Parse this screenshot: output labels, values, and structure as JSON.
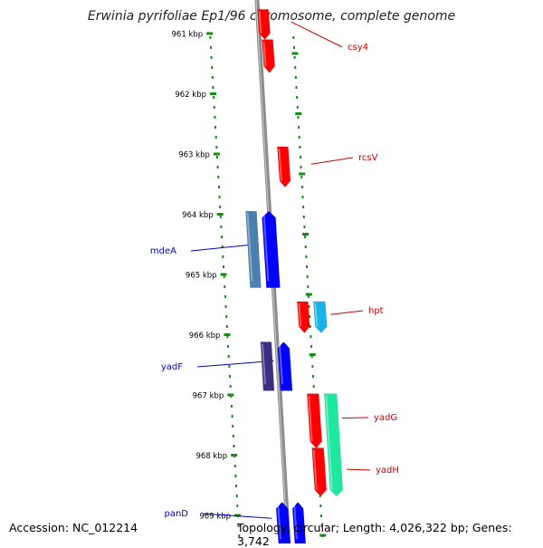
{
  "title": "Erwinia pyrifoliae Ep1/96 chromosome, complete genome",
  "accession": "Accession: NC_012214",
  "topology": "Topology: circular; Length: 4,026,322 bp; Genes: 3,742",
  "scale": [
    {
      "label": "961 kbp",
      "kbp": 961
    },
    {
      "label": "962 kbp",
      "kbp": 962
    },
    {
      "label": "963 kbp",
      "kbp": 963
    },
    {
      "label": "964 kbp",
      "kbp": 964
    },
    {
      "label": "965 kbp",
      "kbp": 965
    },
    {
      "label": "966 kbp",
      "kbp": 966
    },
    {
      "label": "967 kbp",
      "kbp": 967
    },
    {
      "label": "968 kbp",
      "kbp": 968
    },
    {
      "label": "969 kbp",
      "kbp": 969
    }
  ],
  "genes": [
    {
      "label": "csy4",
      "start_kbp": 960.6,
      "end_kbp": 961.1,
      "strand": "+",
      "color": "#ff0000"
    },
    {
      "label": "",
      "start_kbp": 961.1,
      "end_kbp": 961.65,
      "strand": "+",
      "color": "#ff0000"
    },
    {
      "label": "rcsV",
      "start_kbp": 962.88,
      "end_kbp": 963.55,
      "strand": "+",
      "color": "#ff0000"
    },
    {
      "label": "mdeA",
      "start_kbp": 963.95,
      "end_kbp": 965.22,
      "strand": "+",
      "color": "#0000ff"
    },
    {
      "label": "",
      "start_kbp": 963.95,
      "end_kbp": 965.22,
      "strand": "+",
      "color": "#4a7fae"
    },
    {
      "label": "hpt",
      "start_kbp": 965.45,
      "end_kbp": 965.97,
      "strand": "+",
      "color": "#ff0000"
    },
    {
      "label": "",
      "start_kbp": 965.45,
      "end_kbp": 965.97,
      "strand": "+",
      "color": "#18b4e8"
    },
    {
      "label": "yadF",
      "start_kbp": 966.12,
      "end_kbp": 966.93,
      "strand": "+",
      "color": "#0000ff"
    },
    {
      "label": "",
      "start_kbp": 966.12,
      "end_kbp": 966.93,
      "strand": "+",
      "color": "#3c2f82"
    },
    {
      "label": "yadG",
      "start_kbp": 966.98,
      "end_kbp": 967.88,
      "strand": "+",
      "color": "#ff0000"
    },
    {
      "label": "yadH",
      "start_kbp": 967.88,
      "end_kbp": 968.68,
      "strand": "+",
      "color": "#ff0000"
    },
    {
      "label": "",
      "start_kbp": 966.98,
      "end_kbp": 968.68,
      "strand": "+",
      "color": "#1ee8a0"
    },
    {
      "label": "panD",
      "start_kbp": 968.78,
      "end_kbp": 969.5,
      "strand": "+",
      "color": "#0000ff"
    },
    {
      "label": "",
      "start_kbp": 968.78,
      "end_kbp": 969.5,
      "strand": "+",
      "color": "#0000ff"
    }
  ],
  "colors": {
    "background": "#ffffff",
    "backbone": "#8c8c8c",
    "tick": "#1a8a1a",
    "label_plus": "#c80000",
    "label_minus": "#0000c8"
  }
}
